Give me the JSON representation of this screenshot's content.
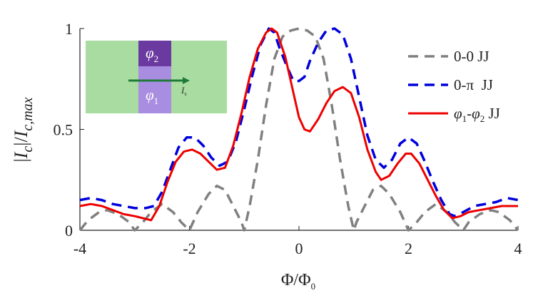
{
  "chart_data": {
    "type": "line",
    "ylabel_parts": {
      "bar1": "|",
      "I1": "I",
      "sub1": "c",
      "bar2": "|/",
      "I2": "I",
      "sub2": "c,max"
    },
    "xlabel_parts": {
      "main": "Φ/Φ",
      "sub": "0"
    },
    "xlim": [
      -4,
      4
    ],
    "ylim": [
      0,
      1
    ],
    "x_ticks": [
      -4,
      -2,
      0,
      2,
      4
    ],
    "x_tick_labels": [
      "-4",
      "-2",
      "0",
      "2",
      "4"
    ],
    "y_ticks": [
      0,
      0.5,
      1
    ],
    "y_tick_labels": [
      "0",
      "0.5",
      "1"
    ],
    "legend_position": "top-right",
    "series": [
      {
        "name": "0-0 JJ",
        "color": "#808080",
        "dash": "dashed",
        "points": [
          [
            -4,
            0
          ],
          [
            -3.85,
            0.05
          ],
          [
            -3.65,
            0.09
          ],
          [
            -3.5,
            0.1
          ],
          [
            -3.3,
            0.08
          ],
          [
            -3.1,
            0.04
          ],
          [
            -3,
            0
          ],
          [
            -2.85,
            0.04
          ],
          [
            -2.7,
            0.09
          ],
          [
            -2.5,
            0.13
          ],
          [
            -2.3,
            0.09
          ],
          [
            -2.15,
            0.04
          ],
          [
            -2,
            0
          ],
          [
            -1.85,
            0.09
          ],
          [
            -1.65,
            0.18
          ],
          [
            -1.5,
            0.22
          ],
          [
            -1.35,
            0.2
          ],
          [
            -1.2,
            0.12
          ],
          [
            -1.05,
            0.04
          ],
          [
            -1,
            0
          ],
          [
            -0.9,
            0.12
          ],
          [
            -0.75,
            0.35
          ],
          [
            -0.6,
            0.62
          ],
          [
            -0.45,
            0.85
          ],
          [
            -0.3,
            0.96
          ],
          [
            -0.15,
            0.99
          ],
          [
            0,
            1
          ],
          [
            0.15,
            0.99
          ],
          [
            0.3,
            0.96
          ],
          [
            0.45,
            0.85
          ],
          [
            0.6,
            0.62
          ],
          [
            0.75,
            0.35
          ],
          [
            0.9,
            0.12
          ],
          [
            1,
            0
          ],
          [
            1.05,
            0.04
          ],
          [
            1.2,
            0.12
          ],
          [
            1.35,
            0.2
          ],
          [
            1.5,
            0.22
          ],
          [
            1.65,
            0.18
          ],
          [
            1.85,
            0.09
          ],
          [
            2,
            0
          ],
          [
            2.15,
            0.04
          ],
          [
            2.3,
            0.09
          ],
          [
            2.5,
            0.13
          ],
          [
            2.7,
            0.09
          ],
          [
            2.85,
            0.04
          ],
          [
            3,
            0
          ],
          [
            3.1,
            0.04
          ],
          [
            3.3,
            0.08
          ],
          [
            3.5,
            0.1
          ],
          [
            3.65,
            0.09
          ],
          [
            3.85,
            0.05
          ],
          [
            4,
            0
          ]
        ]
      },
      {
        "name": "0-π  JJ",
        "color": "#0000dd",
        "dash": "dashed",
        "points": [
          [
            -4,
            0.15
          ],
          [
            -3.8,
            0.16
          ],
          [
            -3.6,
            0.15
          ],
          [
            -3.4,
            0.13
          ],
          [
            -3.2,
            0.12
          ],
          [
            -3,
            0.11
          ],
          [
            -2.8,
            0.11
          ],
          [
            -2.65,
            0.12
          ],
          [
            -2.5,
            0.19
          ],
          [
            -2.35,
            0.3
          ],
          [
            -2.2,
            0.41
          ],
          [
            -2.05,
            0.46
          ],
          [
            -1.9,
            0.46
          ],
          [
            -1.75,
            0.42
          ],
          [
            -1.6,
            0.36
          ],
          [
            -1.45,
            0.32
          ],
          [
            -1.3,
            0.34
          ],
          [
            -1.15,
            0.44
          ],
          [
            -1,
            0.6
          ],
          [
            -0.85,
            0.77
          ],
          [
            -0.7,
            0.92
          ],
          [
            -0.55,
            1
          ],
          [
            -0.45,
            0.98
          ],
          [
            -0.35,
            0.9
          ],
          [
            -0.2,
            0.8
          ],
          [
            -0.1,
            0.74
          ],
          [
            0,
            0.74
          ],
          [
            0.1,
            0.76
          ],
          [
            0.2,
            0.84
          ],
          [
            0.35,
            0.93
          ],
          [
            0.5,
            0.99
          ],
          [
            0.65,
            1
          ],
          [
            0.8,
            0.97
          ],
          [
            0.95,
            0.85
          ],
          [
            1.1,
            0.66
          ],
          [
            1.25,
            0.47
          ],
          [
            1.4,
            0.35
          ],
          [
            1.55,
            0.31
          ],
          [
            1.7,
            0.35
          ],
          [
            1.85,
            0.43
          ],
          [
            2,
            0.46
          ],
          [
            2.15,
            0.43
          ],
          [
            2.3,
            0.34
          ],
          [
            2.45,
            0.24
          ],
          [
            2.6,
            0.15
          ],
          [
            2.75,
            0.08
          ],
          [
            2.85,
            0.07
          ],
          [
            3,
            0.09
          ],
          [
            3.2,
            0.12
          ],
          [
            3.4,
            0.13
          ],
          [
            3.6,
            0.14
          ],
          [
            3.8,
            0.16
          ],
          [
            4,
            0.15
          ]
        ]
      },
      {
        "name": "φ1-φ2 JJ",
        "color": "#ee0000",
        "dash": "solid",
        "points": [
          [
            -4,
            0.12
          ],
          [
            -3.8,
            0.13
          ],
          [
            -3.6,
            0.12
          ],
          [
            -3.4,
            0.1
          ],
          [
            -3.2,
            0.08
          ],
          [
            -3,
            0.07
          ],
          [
            -2.85,
            0.06
          ],
          [
            -2.7,
            0.05
          ],
          [
            -2.55,
            0.12
          ],
          [
            -2.4,
            0.24
          ],
          [
            -2.25,
            0.34
          ],
          [
            -2.1,
            0.39
          ],
          [
            -1.95,
            0.4
          ],
          [
            -1.8,
            0.38
          ],
          [
            -1.65,
            0.34
          ],
          [
            -1.5,
            0.3
          ],
          [
            -1.35,
            0.31
          ],
          [
            -1.2,
            0.42
          ],
          [
            -1.05,
            0.58
          ],
          [
            -0.9,
            0.76
          ],
          [
            -0.75,
            0.9
          ],
          [
            -0.6,
            0.98
          ],
          [
            -0.5,
            1
          ],
          [
            -0.4,
            0.98
          ],
          [
            -0.25,
            0.86
          ],
          [
            -0.1,
            0.68
          ],
          [
            0,
            0.56
          ],
          [
            0.1,
            0.5
          ],
          [
            0.2,
            0.49
          ],
          [
            0.35,
            0.55
          ],
          [
            0.5,
            0.63
          ],
          [
            0.65,
            0.69
          ],
          [
            0.8,
            0.71
          ],
          [
            0.95,
            0.68
          ],
          [
            1.1,
            0.56
          ],
          [
            1.25,
            0.4
          ],
          [
            1.4,
            0.29
          ],
          [
            1.5,
            0.25
          ],
          [
            1.65,
            0.27
          ],
          [
            1.8,
            0.33
          ],
          [
            1.95,
            0.38
          ],
          [
            2.05,
            0.38
          ],
          [
            2.2,
            0.33
          ],
          [
            2.35,
            0.25
          ],
          [
            2.5,
            0.17
          ],
          [
            2.65,
            0.1
          ],
          [
            2.8,
            0.06
          ],
          [
            2.95,
            0.07
          ],
          [
            3.1,
            0.09
          ],
          [
            3.3,
            0.1
          ],
          [
            3.5,
            0.11
          ],
          [
            3.7,
            0.12
          ],
          [
            3.85,
            0.12
          ],
          [
            4,
            0.12
          ]
        ]
      }
    ],
    "legend_labels": {
      "s0": "0-0 JJ",
      "s1": "0-π  JJ",
      "s2": {
        "phi1": "φ",
        "sub1": "1",
        "dash": "-",
        "phi2": "φ",
        "sub2": "2",
        "jj": " JJ"
      }
    },
    "inset": {
      "top_label": {
        "phi": "φ",
        "sub": "2"
      },
      "bottom_label": {
        "phi": "φ",
        "sub": "1"
      },
      "current_label": "I",
      "current_sub": "s",
      "colors": {
        "substrate": "#a8dca0",
        "top_block": "#6a3aa0",
        "bottom_block": "#a98de0",
        "arrow": "#1f7a3a"
      }
    }
  }
}
